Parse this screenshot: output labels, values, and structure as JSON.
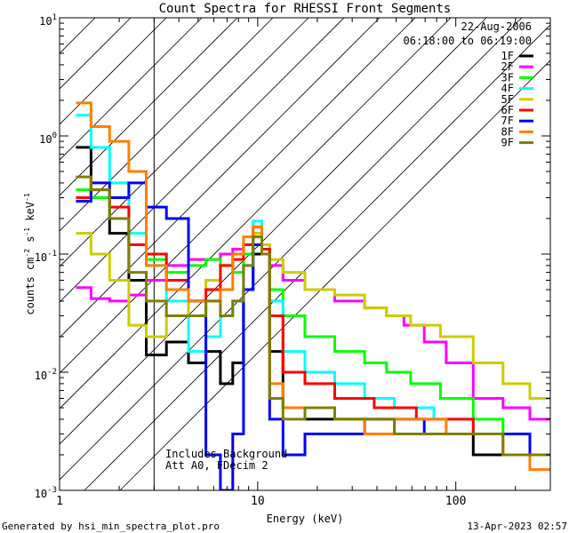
{
  "chart_data": {
    "type": "line",
    "title": "Count Spectra for RHESSI Front Segments",
    "xlabel": "Energy (keV)",
    "ylabel": "counts cm-2 s-1 keV-1",
    "x_scale": "log",
    "y_scale": "log",
    "xlim": [
      1.0,
      300.0
    ],
    "ylim": [
      0.001,
      10.0
    ],
    "x_ticks": [
      {
        "value": 1,
        "label": "1"
      },
      {
        "value": 10,
        "label": "10"
      },
      {
        "value": 100,
        "label": "100"
      }
    ],
    "y_ticks": [
      {
        "value": 10,
        "base": "10",
        "exp": "1"
      },
      {
        "value": 1,
        "base": "10",
        "exp": "0"
      },
      {
        "value": 0.1,
        "base": "10",
        "exp": "-1"
      },
      {
        "value": 0.01,
        "base": "10",
        "exp": "-2"
      },
      {
        "value": 0.001,
        "base": "10",
        "exp": "-3"
      }
    ],
    "date": "22-Aug-2006",
    "time_range": "06:18:00 to 06:19:00",
    "excluded_region": {
      "x_min": 1.0,
      "x_max": 3.0
    },
    "annotations": [
      "Includes Background",
      "Att A0, FDecim 2"
    ],
    "series": [
      {
        "name": "1F",
        "color": "#000000",
        "points": [
          [
            1.3,
            0.8
          ],
          [
            1.6,
            0.3
          ],
          [
            2.0,
            0.15
          ],
          [
            2.5,
            0.06
          ],
          [
            3.0,
            0.014
          ],
          [
            4.0,
            0.018
          ],
          [
            5.0,
            0.012
          ],
          [
            6.0,
            0.015
          ],
          [
            7.0,
            0.008
          ],
          [
            8.0,
            0.012
          ],
          [
            9.0,
            0.05
          ],
          [
            10.0,
            0.1
          ],
          [
            11.0,
            0.11
          ],
          [
            12.0,
            0.015
          ],
          [
            15.0,
            0.005
          ],
          [
            20.0,
            0.004
          ],
          [
            30.0,
            0.004
          ],
          [
            40.0,
            0.003
          ],
          [
            60.0,
            0.003
          ],
          [
            80.0,
            0.003
          ],
          [
            100.0,
            0.003
          ],
          [
            150.0,
            0.002
          ],
          [
            200.0,
            0.002
          ],
          [
            280.0,
            0.002
          ]
        ]
      },
      {
        "name": "2F",
        "color": "#ff00ff",
        "points": [
          [
            1.3,
            0.052
          ],
          [
            1.6,
            0.042
          ],
          [
            2.0,
            0.04
          ],
          [
            2.5,
            0.045
          ],
          [
            3.0,
            0.06
          ],
          [
            4.0,
            0.08
          ],
          [
            5.0,
            0.09
          ],
          [
            6.0,
            0.09
          ],
          [
            7.0,
            0.1
          ],
          [
            8.0,
            0.11
          ],
          [
            9.0,
            0.12
          ],
          [
            10.0,
            0.14
          ],
          [
            11.0,
            0.11
          ],
          [
            12.0,
            0.08
          ],
          [
            15.0,
            0.06
          ],
          [
            20.0,
            0.05
          ],
          [
            30.0,
            0.04
          ],
          [
            40.0,
            0.035
          ],
          [
            50.0,
            0.03
          ],
          [
            60.0,
            0.025
          ],
          [
            80.0,
            0.018
          ],
          [
            100.0,
            0.012
          ],
          [
            150.0,
            0.006
          ],
          [
            200.0,
            0.005
          ],
          [
            280.0,
            0.004
          ]
        ]
      },
      {
        "name": "3F",
        "color": "#00ff00",
        "points": [
          [
            1.3,
            0.35
          ],
          [
            1.6,
            0.3
          ],
          [
            2.0,
            0.2
          ],
          [
            2.5,
            0.12
          ],
          [
            3.0,
            0.09
          ],
          [
            4.0,
            0.07
          ],
          [
            5.0,
            0.08
          ],
          [
            6.0,
            0.09
          ],
          [
            7.0,
            0.08
          ],
          [
            8.0,
            0.07
          ],
          [
            9.0,
            0.1
          ],
          [
            10.0,
            0.15
          ],
          [
            11.0,
            0.1
          ],
          [
            12.0,
            0.05
          ],
          [
            15.0,
            0.03
          ],
          [
            20.0,
            0.02
          ],
          [
            30.0,
            0.015
          ],
          [
            40.0,
            0.012
          ],
          [
            50.0,
            0.01
          ],
          [
            70.0,
            0.008
          ],
          [
            100.0,
            0.006
          ],
          [
            150.0,
            0.004
          ],
          [
            200.0,
            0.003
          ],
          [
            280.0,
            0.002
          ]
        ]
      },
      {
        "name": "4F",
        "color": "#00ffff",
        "points": [
          [
            1.3,
            1.5
          ],
          [
            1.6,
            0.8
          ],
          [
            2.0,
            0.4
          ],
          [
            2.5,
            0.15
          ],
          [
            3.0,
            0.08
          ],
          [
            4.0,
            0.04
          ],
          [
            5.0,
            0.015
          ],
          [
            6.0,
            0.02
          ],
          [
            7.0,
            0.03
          ],
          [
            8.0,
            0.04
          ],
          [
            9.0,
            0.08
          ],
          [
            10.0,
            0.19
          ],
          [
            11.0,
            0.12
          ],
          [
            12.0,
            0.04
          ],
          [
            15.0,
            0.015
          ],
          [
            20.0,
            0.01
          ],
          [
            30.0,
            0.008
          ],
          [
            40.0,
            0.006
          ],
          [
            60.0,
            0.005
          ],
          [
            100.0,
            0.004
          ],
          [
            150.0,
            0.003
          ],
          [
            200.0,
            0.003
          ],
          [
            280.0,
            0.002
          ]
        ]
      },
      {
        "name": "5F",
        "color": "#cccc00",
        "points": [
          [
            1.3,
            0.15
          ],
          [
            1.6,
            0.1
          ],
          [
            2.0,
            0.06
          ],
          [
            2.5,
            0.025
          ],
          [
            3.0,
            0.02
          ],
          [
            4.0,
            0.03
          ],
          [
            5.0,
            0.04
          ],
          [
            6.0,
            0.06
          ],
          [
            7.0,
            0.08
          ],
          [
            8.0,
            0.1
          ],
          [
            9.0,
            0.12
          ],
          [
            10.0,
            0.15
          ],
          [
            11.0,
            0.12
          ],
          [
            12.0,
            0.09
          ],
          [
            15.0,
            0.07
          ],
          [
            20.0,
            0.05
          ],
          [
            30.0,
            0.045
          ],
          [
            40.0,
            0.035
          ],
          [
            50.0,
            0.03
          ],
          [
            70.0,
            0.025
          ],
          [
            100.0,
            0.02
          ],
          [
            150.0,
            0.012
          ],
          [
            200.0,
            0.008
          ],
          [
            280.0,
            0.006
          ]
        ]
      },
      {
        "name": "6F",
        "color": "#ff0000",
        "points": [
          [
            1.3,
            0.3
          ],
          [
            1.6,
            0.35
          ],
          [
            2.0,
            0.25
          ],
          [
            2.5,
            0.12
          ],
          [
            3.0,
            0.1
          ],
          [
            4.0,
            0.06
          ],
          [
            5.0,
            0.04
          ],
          [
            6.0,
            0.05
          ],
          [
            7.0,
            0.08
          ],
          [
            8.0,
            0.09
          ],
          [
            9.0,
            0.12
          ],
          [
            10.0,
            0.17
          ],
          [
            11.0,
            0.11
          ],
          [
            12.0,
            0.03
          ],
          [
            15.0,
            0.01
          ],
          [
            20.0,
            0.008
          ],
          [
            30.0,
            0.006
          ],
          [
            50.0,
            0.005
          ],
          [
            80.0,
            0.004
          ],
          [
            100.0,
            0.004
          ],
          [
            150.0,
            0.003
          ],
          [
            200.0,
            0.003
          ],
          [
            280.0,
            0.002
          ]
        ]
      },
      {
        "name": "7F",
        "color": "#0000ff",
        "points": [
          [
            1.3,
            0.28
          ],
          [
            1.6,
            0.4
          ],
          [
            2.0,
            0.3
          ],
          [
            2.5,
            0.4
          ],
          [
            3.0,
            0.25
          ],
          [
            4.0,
            0.2
          ],
          [
            5.0,
            0.04
          ],
          [
            6.0,
            0.002
          ],
          [
            7.0,
            0.001
          ],
          [
            8.0,
            0.003
          ],
          [
            9.0,
            0.05
          ],
          [
            10.0,
            0.12
          ],
          [
            11.0,
            0.1
          ],
          [
            12.0,
            0.004
          ],
          [
            15.0,
            0.002
          ],
          [
            20.0,
            0.003
          ],
          [
            30.0,
            0.003
          ],
          [
            40.0,
            0.004
          ],
          [
            60.0,
            0.004
          ],
          [
            80.0,
            0.003
          ],
          [
            100.0,
            0.003
          ],
          [
            150.0,
            0.003
          ],
          [
            200.0,
            0.003
          ],
          [
            280.0,
            0.002
          ]
        ]
      },
      {
        "name": "8F",
        "color": "#ff7f00",
        "points": [
          [
            1.3,
            1.9
          ],
          [
            1.6,
            1.2
          ],
          [
            2.0,
            0.9
          ],
          [
            2.5,
            0.5
          ],
          [
            3.0,
            0.08
          ],
          [
            4.0,
            0.05
          ],
          [
            5.0,
            0.04
          ],
          [
            6.0,
            0.04
          ],
          [
            7.0,
            0.05
          ],
          [
            8.0,
            0.1
          ],
          [
            9.0,
            0.14
          ],
          [
            10.0,
            0.17
          ],
          [
            11.0,
            0.1
          ],
          [
            12.0,
            0.008
          ],
          [
            15.0,
            0.005
          ],
          [
            20.0,
            0.005
          ],
          [
            30.0,
            0.004
          ],
          [
            40.0,
            0.003
          ],
          [
            60.0,
            0.004
          ],
          [
            80.0,
            0.004
          ],
          [
            100.0,
            0.003
          ],
          [
            150.0,
            0.003
          ],
          [
            200.0,
            0.002
          ],
          [
            280.0,
            0.0015
          ]
        ]
      },
      {
        "name": "9F",
        "color": "#7f7f00",
        "points": [
          [
            1.3,
            0.45
          ],
          [
            1.6,
            0.35
          ],
          [
            2.0,
            0.2
          ],
          [
            2.5,
            0.07
          ],
          [
            3.0,
            0.04
          ],
          [
            4.0,
            0.03
          ],
          [
            5.0,
            0.03
          ],
          [
            6.0,
            0.04
          ],
          [
            7.0,
            0.03
          ],
          [
            8.0,
            0.04
          ],
          [
            9.0,
            0.08
          ],
          [
            10.0,
            0.14
          ],
          [
            11.0,
            0.1
          ],
          [
            12.0,
            0.006
          ],
          [
            15.0,
            0.004
          ],
          [
            20.0,
            0.005
          ],
          [
            30.0,
            0.004
          ],
          [
            40.0,
            0.004
          ],
          [
            60.0,
            0.003
          ],
          [
            80.0,
            0.003
          ],
          [
            100.0,
            0.003
          ],
          [
            150.0,
            0.003
          ],
          [
            200.0,
            0.002
          ],
          [
            280.0,
            0.002
          ]
        ]
      }
    ]
  },
  "footer": {
    "left": "Generated by hsi_min_spectra_plot.pro",
    "right": "13-Apr-2023 02:57"
  }
}
